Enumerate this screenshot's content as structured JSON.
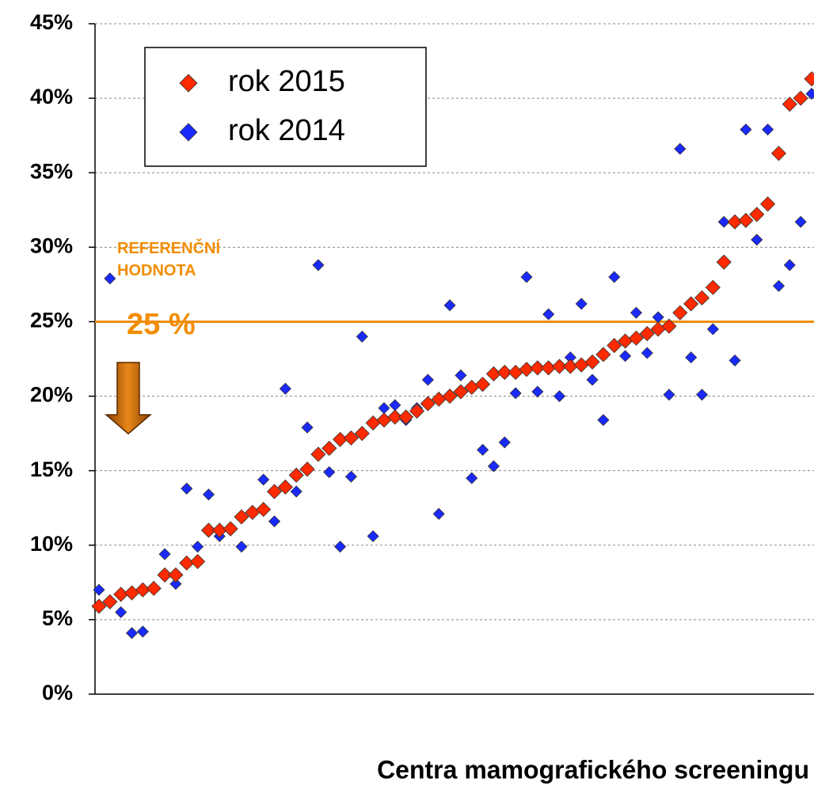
{
  "chart_data": {
    "type": "scatter",
    "x_label": "Centra mamografického screeningu",
    "categories": [
      null,
      null,
      null,
      null,
      null,
      null,
      null,
      null,
      null,
      null,
      null,
      null,
      null,
      null,
      null,
      null,
      null,
      null,
      null,
      null,
      null,
      null,
      null,
      null,
      null,
      null,
      null,
      null,
      null,
      null,
      null,
      null,
      null,
      null,
      null,
      null,
      null,
      null,
      null,
      null,
      null,
      null,
      null,
      null,
      null,
      null,
      null,
      null,
      null,
      null,
      null,
      null,
      null,
      null,
      null,
      null,
      null,
      null,
      null,
      null,
      null,
      null,
      null,
      null,
      null,
      null
    ],
    "series": [
      {
        "name": "rok 2015",
        "color": "#ff2a00",
        "values": [
          5.9,
          6.2,
          6.7,
          6.8,
          7.0,
          7.1,
          8.0,
          8.0,
          8.8,
          8.9,
          11.0,
          11.0,
          11.1,
          11.9,
          12.2,
          12.4,
          13.6,
          13.9,
          14.7,
          15.1,
          16.1,
          16.5,
          17.1,
          17.2,
          17.5,
          18.2,
          18.4,
          18.6,
          18.6,
          19.0,
          19.5,
          19.8,
          20.0,
          20.3,
          20.6,
          20.8,
          21.5,
          21.6,
          21.6,
          21.8,
          21.9,
          21.9,
          22.0,
          22.0,
          22.1,
          22.3,
          22.8,
          23.4,
          23.7,
          23.9,
          24.2,
          24.5,
          24.7,
          25.6,
          26.2,
          26.6,
          27.3,
          29.0,
          31.7,
          31.8,
          32.2,
          32.9,
          36.3,
          39.6,
          40.0,
          41.3
        ]
      },
      {
        "name": "rok 2014",
        "color": "#1a2aff",
        "values": [
          7.0,
          27.9,
          5.5,
          4.1,
          4.2,
          7.1,
          9.4,
          7.4,
          13.8,
          9.9,
          13.4,
          10.6,
          11.0,
          9.9,
          12.2,
          14.4,
          11.6,
          20.5,
          13.6,
          17.9,
          28.8,
          14.9,
          9.9,
          14.6,
          24.0,
          10.6,
          19.2,
          19.4,
          18.4,
          19.2,
          21.1,
          12.1,
          26.1,
          21.4,
          14.5,
          16.4,
          15.3,
          16.9,
          20.2,
          28.0,
          20.3,
          25.5,
          20.0,
          22.6,
          26.2,
          21.1,
          18.4,
          28.0,
          22.7,
          25.6,
          22.9,
          25.3,
          20.1,
          36.6,
          22.6,
          20.1,
          24.5,
          31.7,
          22.4,
          37.9,
          30.5,
          37.9,
          27.4,
          28.8,
          31.7,
          40.3
        ]
      }
    ],
    "ylim": [
      0,
      45
    ],
    "yticks": [
      {
        "value": 0,
        "label": "0%"
      },
      {
        "value": 5,
        "label": "5%"
      },
      {
        "value": 10,
        "label": "10%"
      },
      {
        "value": 15,
        "label": "15%"
      },
      {
        "value": 20,
        "label": "20%"
      },
      {
        "value": 25,
        "label": "25%"
      },
      {
        "value": 30,
        "label": "30%"
      },
      {
        "value": 35,
        "label": "35%"
      },
      {
        "value": 40,
        "label": "40%"
      },
      {
        "value": 45,
        "label": "45%"
      }
    ],
    "grid": true,
    "reference_line": {
      "value": 25,
      "color": "#f28c00",
      "label": "REFERENČNÍ HODNOTA",
      "value_label": "25 %"
    },
    "legend_position": "upper left"
  }
}
